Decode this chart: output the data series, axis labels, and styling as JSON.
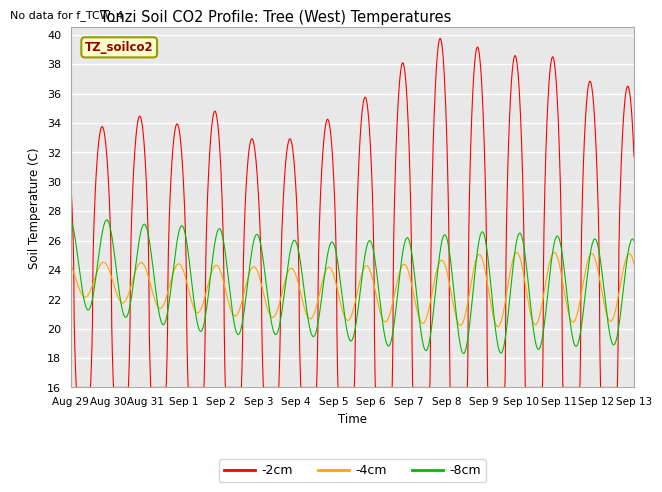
{
  "title": "Tonzi Soil CO2 Profile: Tree (West) Temperatures",
  "note": "No data for f_TCW_4",
  "ylabel": "Soil Temperature (C)",
  "xlabel": "Time",
  "box_label": "TZ_soilco2",
  "ylim": [
    16,
    40.5
  ],
  "yticks": [
    16,
    18,
    20,
    22,
    24,
    26,
    28,
    30,
    32,
    34,
    36,
    38,
    40
  ],
  "bg_color": "#e8e8e8",
  "fig_bg": "#ffffff",
  "line_colors": {
    "-2cm": "#ff0000",
    "-4cm": "#ffa500",
    "-8cm": "#00bb00"
  },
  "legend_labels": [
    "-2cm",
    "-4cm",
    "-8cm"
  ],
  "n_days": 15,
  "points_per_day": 144,
  "cm2_base": [
    22.5,
    22.3,
    22.1,
    21.8,
    21.5,
    21.5,
    21.5,
    21.5,
    21.5,
    21.5,
    21.5,
    21.5,
    21.5,
    21.5,
    21.5
  ],
  "cm2_amp": [
    11.0,
    11.5,
    12.5,
    12.0,
    13.5,
    11.0,
    11.5,
    13.0,
    14.5,
    17.0,
    18.5,
    17.5,
    17.0,
    17.0,
    15.0
  ],
  "cm2_min_clip": 16.0,
  "cm4_base": [
    23.5,
    23.2,
    23.0,
    22.8,
    22.6,
    22.5,
    22.4,
    22.4,
    22.4,
    22.4,
    22.5,
    22.6,
    22.7,
    22.8,
    22.8
  ],
  "cm4_amp": [
    1.2,
    1.3,
    1.5,
    1.6,
    1.7,
    1.7,
    1.7,
    1.8,
    1.9,
    2.0,
    2.2,
    2.5,
    2.5,
    2.4,
    2.3
  ],
  "cm8_base": [
    24.5,
    24.2,
    23.8,
    23.5,
    23.2,
    23.0,
    22.8,
    22.6,
    22.5,
    22.4,
    22.4,
    22.4,
    22.5,
    22.5,
    22.5
  ],
  "cm8_amp": [
    3.0,
    3.2,
    3.3,
    3.5,
    3.6,
    3.4,
    3.2,
    3.3,
    3.5,
    3.8,
    4.0,
    4.2,
    4.0,
    3.8,
    3.6
  ],
  "xtick_labels": [
    "Aug 29",
    "Aug 30",
    "Aug 31",
    "Sep 1",
    "Sep 2",
    "Sep 3",
    "Sep 4",
    "Sep 5",
    "Sep 6",
    "Sep 7",
    "Sep 8",
    "Sep 9",
    "Sep 10",
    "Sep 11",
    "Sep 12",
    "Sep 13"
  ],
  "xtick_positions": [
    0,
    1,
    2,
    3,
    4,
    5,
    6,
    7,
    8,
    9,
    10,
    11,
    12,
    13,
    14,
    15
  ]
}
